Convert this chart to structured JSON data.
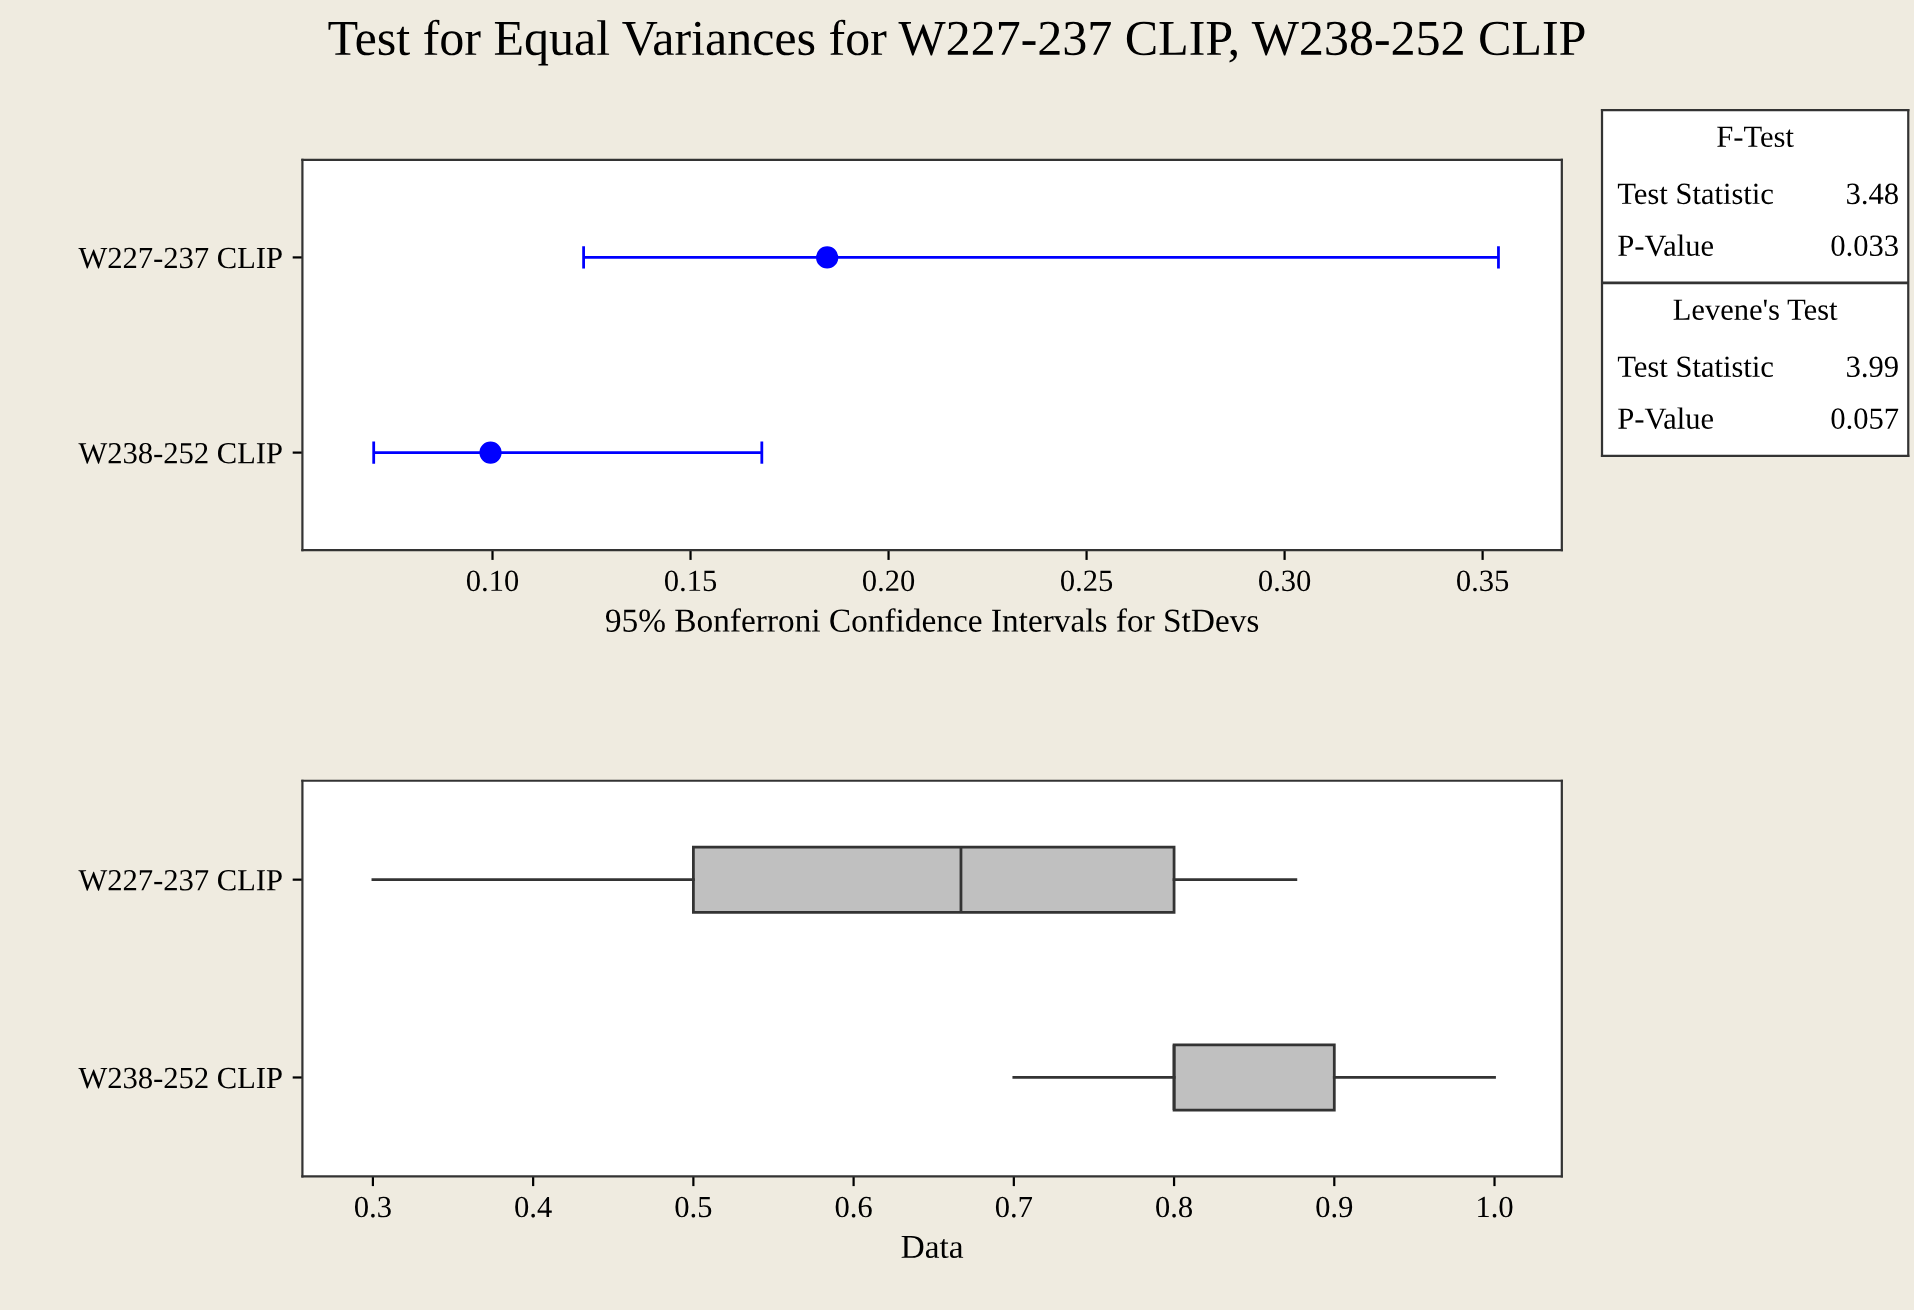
{
  "chart_data": [
    {
      "type": "scatter",
      "title": "Test for Equal Variances for W227-237 CLIP, W238-252 CLIP",
      "orientation": "horizontal",
      "categories": [
        "W227-237 CLIP",
        "W238-252 CLIP"
      ],
      "series": [
        {
          "color": "#0000ff",
          "values": [
            0.1845,
            0.0995
          ],
          "errors": [
            [
              0.123,
              0.354
            ],
            [
              0.07,
              0.168
            ]
          ]
        }
      ],
      "marker": "circle",
      "xlabel": "95% Bonferroni Confidence Intervals for StDevs",
      "xlim": [
        0.052,
        0.37
      ],
      "xticks": [
        {
          "value": 0.1,
          "label": "0.10"
        },
        0.15,
        {
          "value": 0.2,
          "label": "0.20"
        },
        0.25,
        {
          "value": 0.3,
          "label": "0.30"
        },
        0.35
      ],
      "grid": false,
      "legend": false
    },
    {
      "type": "box",
      "orientation": "horizontal",
      "categories": [
        "W227-237 CLIP",
        "W238-252 CLIP"
      ],
      "boxes": [
        {
          "low": 0.3,
          "q1": 0.5,
          "median": 0.667,
          "q3": 0.8,
          "high": 0.876
        },
        {
          "low": 0.7,
          "q1": 0.8,
          "median": 0.8,
          "q3": 0.9,
          "high": 1.0
        }
      ],
      "colors": [
        "#c0c0c0",
        "#c0c0c0"
      ],
      "xlabel": "Data",
      "xlim": [
        0.256,
        1.042
      ],
      "xticks": [
        0.3,
        0.4,
        0.5,
        0.6,
        0.7,
        0.8,
        0.9,
        {
          "value": 1.0,
          "label": "1.0"
        }
      ],
      "grid": false,
      "legend": false
    },
    {
      "type": "other",
      "annotations": [
        "F-Test",
        "Test Statistic",
        "3.48",
        "P-Value",
        "0.033",
        "Levene's Test",
        "Test Statistic",
        "3.99",
        "P-Value",
        "0.057"
      ]
    }
  ]
}
